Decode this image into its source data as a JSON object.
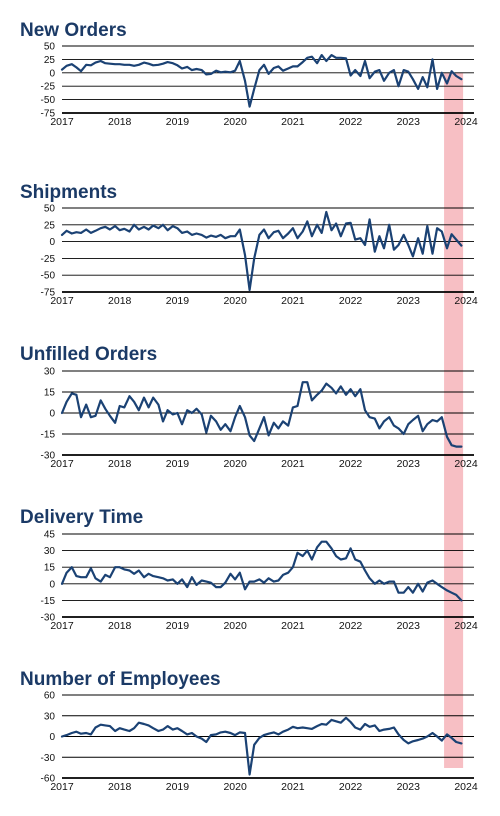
{
  "style": {
    "line_color": "#1b4274",
    "title_color": "#1b3a66",
    "highlight_color": "#f08a93"
  },
  "highlight": {
    "from": 2023.62,
    "to": 2023.95
  },
  "chart_data": [
    {
      "type": "line",
      "title": "New Orders",
      "ylim": [
        -75,
        50
      ],
      "yticks": [
        50,
        25,
        0,
        -25,
        -50,
        -75
      ],
      "xlim": [
        2017,
        2024
      ],
      "xticks": [
        2017,
        2018,
        2019,
        2020,
        2021,
        2022,
        2023,
        2024
      ],
      "series": [
        {
          "x": [
            2017.0,
            2017.08,
            2017.17,
            2017.25,
            2017.33,
            2017.42,
            2017.5,
            2017.58,
            2017.67,
            2017.75,
            2017.83,
            2017.92,
            2018.0,
            2018.08,
            2018.17,
            2018.25,
            2018.33,
            2018.42,
            2018.5,
            2018.58,
            2018.67,
            2018.75,
            2018.83,
            2018.92,
            2019.0,
            2019.08,
            2019.17,
            2019.25,
            2019.33,
            2019.42,
            2019.5,
            2019.58,
            2019.67,
            2019.75,
            2019.83,
            2019.92,
            2020.0,
            2020.08,
            2020.17,
            2020.25,
            2020.33,
            2020.42,
            2020.5,
            2020.58,
            2020.67,
            2020.75,
            2020.83,
            2020.92,
            2021.0,
            2021.08,
            2021.17,
            2021.25,
            2021.33,
            2021.42,
            2021.5,
            2021.58,
            2021.67,
            2021.75,
            2021.83,
            2021.92,
            2022.0,
            2022.08,
            2022.17,
            2022.25,
            2022.33,
            2022.42,
            2022.5,
            2022.58,
            2022.67,
            2022.75,
            2022.83,
            2022.92,
            2023.0,
            2023.08,
            2023.17,
            2023.25,
            2023.33,
            2023.42,
            2023.5,
            2023.58,
            2023.67,
            2023.75,
            2023.83,
            2023.92
          ],
          "y": [
            6,
            13,
            16,
            10,
            3,
            15,
            14,
            19,
            22,
            18,
            17,
            16,
            16,
            15,
            15,
            13,
            15,
            19,
            17,
            14,
            15,
            17,
            20,
            18,
            14,
            8,
            11,
            5,
            7,
            5,
            -3,
            -2,
            4,
            1,
            2,
            1,
            4,
            22,
            -15,
            -63,
            -30,
            5,
            15,
            -2,
            9,
            12,
            4,
            8,
            12,
            12,
            20,
            28,
            30,
            18,
            33,
            22,
            33,
            28,
            28,
            27,
            -5,
            5,
            -6,
            22,
            -10,
            2,
            5,
            -15,
            0,
            5,
            -25,
            5,
            2,
            -12,
            -30,
            -8,
            -27,
            25,
            -30,
            0,
            -20,
            3,
            -6,
            -12
          ]
        }
      ]
    },
    {
      "type": "line",
      "title": "Shipments",
      "ylim": [
        -75,
        50
      ],
      "yticks": [
        50,
        25,
        0,
        -25,
        -50,
        -75
      ],
      "xlim": [
        2017,
        2024
      ],
      "xticks": [
        2017,
        2018,
        2019,
        2020,
        2021,
        2022,
        2023,
        2024
      ],
      "series": [
        {
          "x": [
            2017.0,
            2017.08,
            2017.17,
            2017.25,
            2017.33,
            2017.42,
            2017.5,
            2017.58,
            2017.67,
            2017.75,
            2017.83,
            2017.92,
            2018.0,
            2018.08,
            2018.17,
            2018.25,
            2018.33,
            2018.42,
            2018.5,
            2018.58,
            2018.67,
            2018.75,
            2018.83,
            2018.92,
            2019.0,
            2019.08,
            2019.17,
            2019.25,
            2019.33,
            2019.42,
            2019.5,
            2019.58,
            2019.67,
            2019.75,
            2019.83,
            2019.92,
            2020.0,
            2020.08,
            2020.17,
            2020.25,
            2020.33,
            2020.42,
            2020.5,
            2020.58,
            2020.67,
            2020.75,
            2020.83,
            2020.92,
            2021.0,
            2021.08,
            2021.17,
            2021.25,
            2021.33,
            2021.42,
            2021.5,
            2021.58,
            2021.67,
            2021.75,
            2021.83,
            2021.92,
            2022.0,
            2022.08,
            2022.17,
            2022.25,
            2022.33,
            2022.42,
            2022.5,
            2022.58,
            2022.67,
            2022.75,
            2022.83,
            2022.92,
            2023.0,
            2023.08,
            2023.17,
            2023.25,
            2023.33,
            2023.42,
            2023.5,
            2023.58,
            2023.67,
            2023.75,
            2023.83,
            2023.92
          ],
          "y": [
            10,
            16,
            12,
            14,
            13,
            18,
            13,
            16,
            20,
            22,
            18,
            23,
            17,
            19,
            15,
            25,
            18,
            22,
            18,
            24,
            20,
            25,
            17,
            23,
            20,
            13,
            15,
            10,
            12,
            10,
            6,
            9,
            7,
            10,
            5,
            8,
            8,
            18,
            -20,
            -72,
            -25,
            10,
            18,
            5,
            14,
            16,
            5,
            12,
            20,
            5,
            15,
            30,
            8,
            25,
            13,
            44,
            17,
            27,
            8,
            27,
            28,
            3,
            5,
            -5,
            33,
            -15,
            8,
            -10,
            25,
            -12,
            -5,
            10,
            -5,
            -22,
            5,
            -18,
            23,
            -18,
            20,
            15,
            -10,
            11,
            3,
            -6
          ]
        }
      ]
    },
    {
      "type": "line",
      "title": "Unfilled Orders",
      "ylim": [
        -30,
        30
      ],
      "yticks": [
        30,
        15,
        0,
        -15,
        -30
      ],
      "xlim": [
        2017,
        2024
      ],
      "xticks": [
        2017,
        2018,
        2019,
        2020,
        2021,
        2022,
        2023,
        2024
      ],
      "series": [
        {
          "x": [
            2017.0,
            2017.08,
            2017.17,
            2017.25,
            2017.33,
            2017.42,
            2017.5,
            2017.58,
            2017.67,
            2017.75,
            2017.83,
            2017.92,
            2018.0,
            2018.08,
            2018.17,
            2018.25,
            2018.33,
            2018.42,
            2018.5,
            2018.58,
            2018.67,
            2018.75,
            2018.83,
            2018.92,
            2019.0,
            2019.08,
            2019.17,
            2019.25,
            2019.33,
            2019.42,
            2019.5,
            2019.58,
            2019.67,
            2019.75,
            2019.83,
            2019.92,
            2020.0,
            2020.08,
            2020.17,
            2020.25,
            2020.33,
            2020.42,
            2020.5,
            2020.58,
            2020.67,
            2020.75,
            2020.83,
            2020.92,
            2021.0,
            2021.08,
            2021.17,
            2021.25,
            2021.33,
            2021.42,
            2021.5,
            2021.58,
            2021.67,
            2021.75,
            2021.83,
            2021.92,
            2022.0,
            2022.08,
            2022.17,
            2022.25,
            2022.33,
            2022.42,
            2022.5,
            2022.58,
            2022.67,
            2022.75,
            2022.83,
            2022.92,
            2023.0,
            2023.08,
            2023.17,
            2023.25,
            2023.33,
            2023.42,
            2023.5,
            2023.58,
            2023.67,
            2023.75,
            2023.83,
            2023.92
          ],
          "y": [
            0,
            8,
            14,
            13,
            -3,
            6,
            -3,
            -2,
            9,
            3,
            -2,
            -7,
            5,
            4,
            12,
            8,
            2,
            11,
            4,
            11,
            6,
            -6,
            2,
            -1,
            0,
            -8,
            2,
            0,
            3,
            -1,
            -14,
            -2,
            -6,
            -12,
            -8,
            -13,
            -3,
            5,
            -3,
            -16,
            -20,
            -11,
            -3,
            -16,
            -7,
            -11,
            -6,
            -9,
            4,
            5,
            22,
            22,
            9,
            13,
            16,
            21,
            18,
            14,
            19,
            13,
            17,
            12,
            17,
            2,
            -3,
            -4,
            -11,
            -6,
            -3,
            -9,
            -11,
            -15,
            -8,
            -5,
            -2,
            -13,
            -8,
            -5,
            -6,
            -3,
            -17,
            -23,
            -24,
            -24
          ]
        }
      ]
    },
    {
      "type": "line",
      "title": "Delivery Time",
      "ylim": [
        -30,
        45
      ],
      "yticks": [
        45,
        30,
        15,
        0,
        -15,
        -30
      ],
      "xlim": [
        2017,
        2024
      ],
      "xticks": [
        2017,
        2018,
        2019,
        2020,
        2021,
        2022,
        2023,
        2024
      ],
      "series": [
        {
          "x": [
            2017.0,
            2017.08,
            2017.17,
            2017.25,
            2017.33,
            2017.42,
            2017.5,
            2017.58,
            2017.67,
            2017.75,
            2017.83,
            2017.92,
            2018.0,
            2018.08,
            2018.17,
            2018.25,
            2018.33,
            2018.42,
            2018.5,
            2018.58,
            2018.67,
            2018.75,
            2018.83,
            2018.92,
            2019.0,
            2019.08,
            2019.17,
            2019.25,
            2019.33,
            2019.42,
            2019.5,
            2019.58,
            2019.67,
            2019.75,
            2019.83,
            2019.92,
            2020.0,
            2020.08,
            2020.17,
            2020.25,
            2020.33,
            2020.42,
            2020.5,
            2020.58,
            2020.67,
            2020.75,
            2020.83,
            2020.92,
            2021.0,
            2021.08,
            2021.17,
            2021.25,
            2021.33,
            2021.42,
            2021.5,
            2021.58,
            2021.67,
            2021.75,
            2021.83,
            2021.92,
            2022.0,
            2022.08,
            2022.17,
            2022.25,
            2022.33,
            2022.42,
            2022.5,
            2022.58,
            2022.67,
            2022.75,
            2022.83,
            2022.92,
            2023.0,
            2023.08,
            2023.17,
            2023.25,
            2023.33,
            2023.42,
            2023.5,
            2023.58,
            2023.67,
            2023.75,
            2023.83,
            2023.92
          ],
          "y": [
            0,
            10,
            15,
            7,
            6,
            6,
            14,
            5,
            2,
            8,
            6,
            15,
            15,
            13,
            12,
            9,
            12,
            6,
            9,
            7,
            6,
            5,
            3,
            4,
            0,
            4,
            -3,
            6,
            -1,
            3,
            2,
            1,
            -3,
            -3,
            1,
            9,
            4,
            10,
            -5,
            2,
            2,
            4,
            1,
            5,
            2,
            3,
            8,
            10,
            15,
            28,
            25,
            30,
            22,
            33,
            38,
            38,
            32,
            25,
            22,
            23,
            32,
            22,
            20,
            12,
            5,
            0,
            3,
            0,
            2,
            2,
            -8,
            -8,
            -3,
            -8,
            0,
            -7,
            1,
            3,
            0,
            -3,
            -6,
            -8,
            -10,
            -15
          ]
        }
      ]
    },
    {
      "type": "line",
      "title": "Number of Employees",
      "ylim": [
        -60,
        60
      ],
      "yticks": [
        60,
        30,
        0,
        -30,
        -60
      ],
      "xlim": [
        2017,
        2024
      ],
      "xticks": [
        2017,
        2018,
        2019,
        2020,
        2021,
        2022,
        2023,
        2024
      ],
      "series": [
        {
          "x": [
            2017.0,
            2017.08,
            2017.17,
            2017.25,
            2017.33,
            2017.42,
            2017.5,
            2017.58,
            2017.67,
            2017.75,
            2017.83,
            2017.92,
            2018.0,
            2018.08,
            2018.17,
            2018.25,
            2018.33,
            2018.42,
            2018.5,
            2018.58,
            2018.67,
            2018.75,
            2018.83,
            2018.92,
            2019.0,
            2019.08,
            2019.17,
            2019.25,
            2019.33,
            2019.42,
            2019.5,
            2019.58,
            2019.67,
            2019.75,
            2019.83,
            2019.92,
            2020.0,
            2020.08,
            2020.17,
            2020.25,
            2020.33,
            2020.42,
            2020.5,
            2020.58,
            2020.67,
            2020.75,
            2020.83,
            2020.92,
            2021.0,
            2021.08,
            2021.17,
            2021.25,
            2021.33,
            2021.42,
            2021.5,
            2021.58,
            2021.67,
            2021.75,
            2021.83,
            2021.92,
            2022.0,
            2022.08,
            2022.17,
            2022.25,
            2022.33,
            2022.42,
            2022.5,
            2022.58,
            2022.67,
            2022.75,
            2022.83,
            2022.92,
            2023.0,
            2023.08,
            2023.17,
            2023.25,
            2023.33,
            2023.42,
            2023.5,
            2023.58,
            2023.67,
            2023.75,
            2023.83,
            2023.92
          ],
          "y": [
            0,
            2,
            5,
            7,
            4,
            5,
            3,
            13,
            17,
            16,
            15,
            8,
            12,
            10,
            8,
            12,
            20,
            18,
            16,
            12,
            8,
            10,
            15,
            10,
            12,
            8,
            3,
            5,
            0,
            -3,
            -8,
            2,
            3,
            6,
            7,
            5,
            2,
            6,
            5,
            -55,
            -12,
            -2,
            2,
            4,
            6,
            3,
            7,
            10,
            14,
            12,
            13,
            12,
            11,
            15,
            18,
            17,
            24,
            22,
            20,
            27,
            21,
            13,
            10,
            18,
            14,
            16,
            8,
            10,
            11,
            13,
            3,
            -5,
            -10,
            -7,
            -5,
            -3,
            0,
            5,
            0,
            -6,
            3,
            -2,
            -8,
            -10
          ]
        }
      ]
    }
  ]
}
